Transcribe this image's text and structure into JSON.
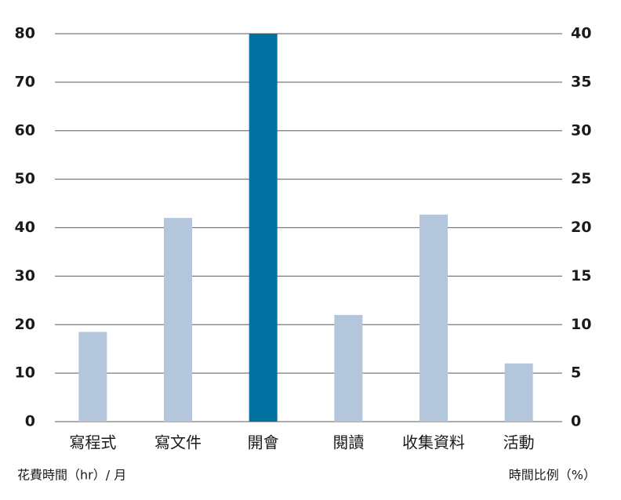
{
  "chart_data": {
    "type": "bar",
    "categories": [
      "寫程式",
      "寫文件",
      "開會",
      "閱讀",
      "收集資料",
      "活動"
    ],
    "values": [
      18.5,
      42,
      80,
      22,
      42.7,
      12
    ],
    "colors": [
      "#b4c6db",
      "#b4c6db",
      "#0071a1",
      "#b4c6db",
      "#b4c6db",
      "#b4c6db"
    ],
    "ylim": [
      0,
      80
    ],
    "yticks": [
      0,
      10,
      20,
      30,
      40,
      50,
      60,
      70,
      80
    ],
    "y2lim": [
      0,
      40
    ],
    "y2ticks": [
      0,
      5,
      10,
      15,
      20,
      25,
      30,
      35,
      40
    ],
    "y_label": "花費時間（hr）/ 月",
    "y2_label": "時間比例（%）",
    "grid": true
  }
}
